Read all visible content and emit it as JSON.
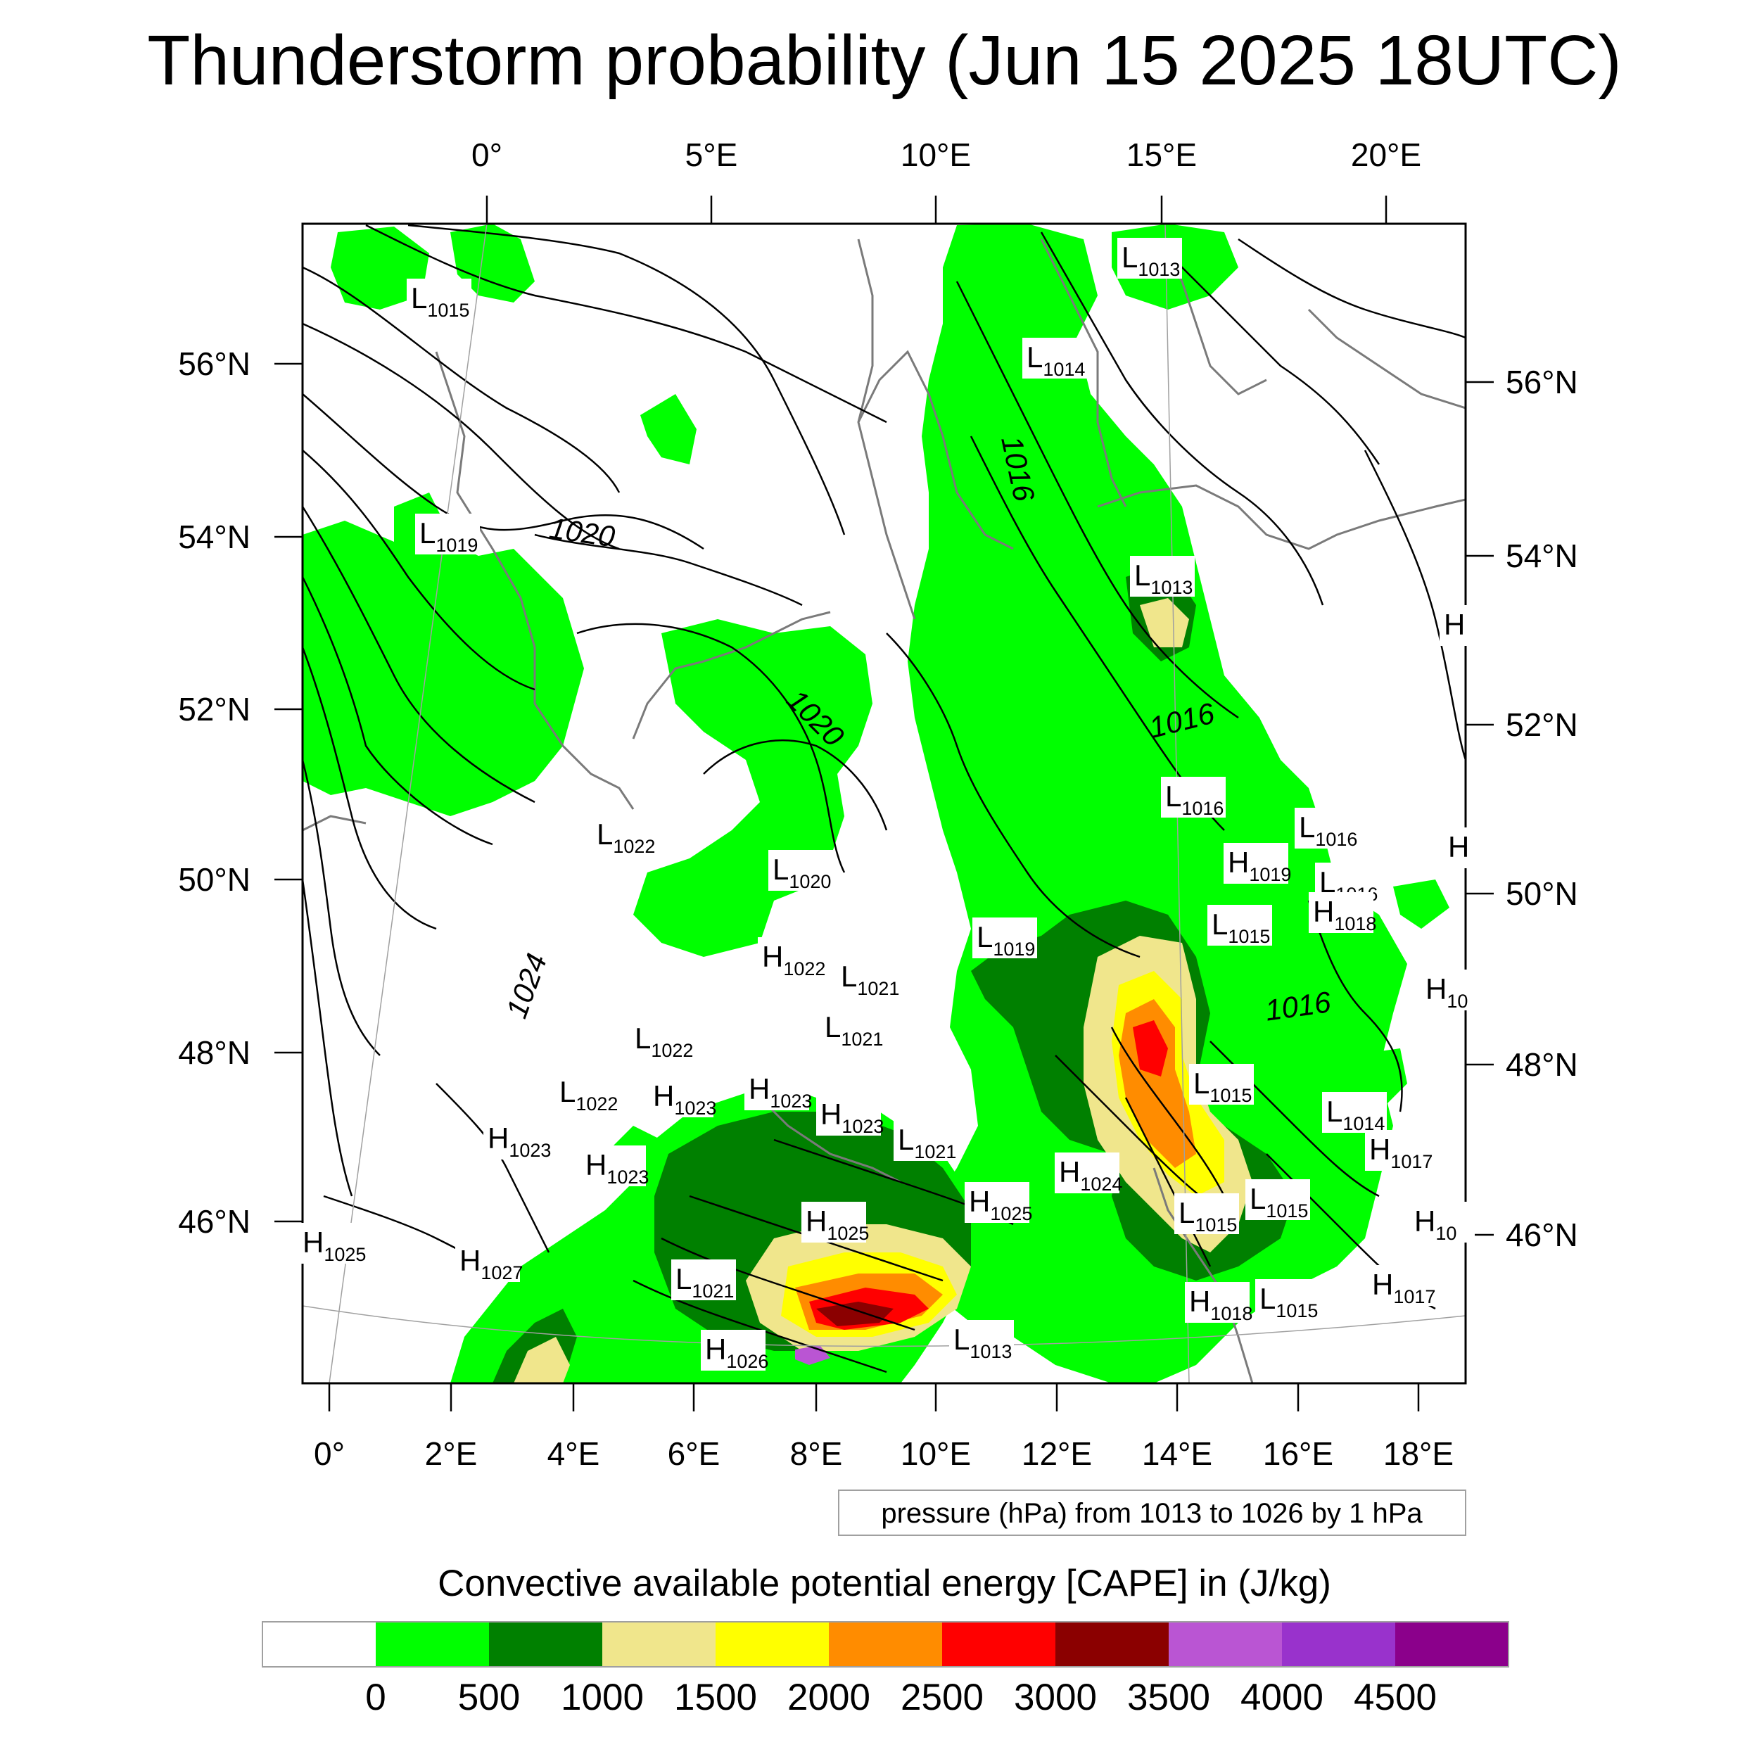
{
  "title": "Thunderstorm probability (Jun 15 2025 18UTC)",
  "top_lon_labels": [
    "0°",
    "5°E",
    "10°E",
    "15°E",
    "20°E"
  ],
  "bottom_lon_labels": [
    "0°",
    "2°E",
    "4°E",
    "6°E",
    "8°E",
    "10°E",
    "12°E",
    "14°E",
    "16°E",
    "18°E"
  ],
  "left_lat_labels": [
    "56°N",
    "54°N",
    "52°N",
    "50°N",
    "48°N",
    "46°N"
  ],
  "right_lat_labels": [
    "56°N",
    "54°N",
    "52°N",
    "50°N",
    "48°N",
    "46°N"
  ],
  "isobar_labels": [
    "1020",
    "1020",
    "1016",
    "1016",
    "1016",
    "1024"
  ],
  "pressure_centers": [
    {
      "t": "L",
      "v": "1015"
    },
    {
      "t": "L",
      "v": "1013"
    },
    {
      "t": "L",
      "v": "1014"
    },
    {
      "t": "L",
      "v": "1019"
    },
    {
      "t": "L",
      "v": "1013"
    },
    {
      "t": "H",
      "v": ""
    },
    {
      "t": "L",
      "v": "1016"
    },
    {
      "t": "L",
      "v": "1016"
    },
    {
      "t": "L",
      "v": "1022"
    },
    {
      "t": "L",
      "v": "1020"
    },
    {
      "t": "H",
      "v": "1019"
    },
    {
      "t": "L",
      "v": "1016"
    },
    {
      "t": "H",
      "v": "1018"
    },
    {
      "t": "H",
      "v": ""
    },
    {
      "t": "L",
      "v": "1019"
    },
    {
      "t": "L",
      "v": "1015"
    },
    {
      "t": "H",
      "v": "1022"
    },
    {
      "t": "L",
      "v": "1021"
    },
    {
      "t": "H",
      "v": "10"
    },
    {
      "t": "L",
      "v": "1021"
    },
    {
      "t": "L",
      "v": "1022"
    },
    {
      "t": "L",
      "v": "1015"
    },
    {
      "t": "L",
      "v": "1022"
    },
    {
      "t": "H",
      "v": "1023"
    },
    {
      "t": "H",
      "v": "1023"
    },
    {
      "t": "H",
      "v": "1023"
    },
    {
      "t": "L",
      "v": "1014"
    },
    {
      "t": "H",
      "v": "1023"
    },
    {
      "t": "H",
      "v": "1023"
    },
    {
      "t": "L",
      "v": "1021"
    },
    {
      "t": "H",
      "v": "1017"
    },
    {
      "t": "H",
      "v": "1024"
    },
    {
      "t": "L",
      "v": "1015"
    },
    {
      "t": "H",
      "v": "1025"
    },
    {
      "t": "L",
      "v": "1015"
    },
    {
      "t": "H",
      "v": "10"
    },
    {
      "t": "H",
      "v": "1025"
    },
    {
      "t": "H",
      "v": "1027"
    },
    {
      "t": "H",
      "v": "1025"
    },
    {
      "t": "L",
      "v": "1021"
    },
    {
      "t": "H",
      "v": "1017"
    },
    {
      "t": "H",
      "v": "1018"
    },
    {
      "t": "L",
      "v": "1015"
    },
    {
      "t": "L",
      "v": "1013"
    },
    {
      "t": "H",
      "v": "1026"
    }
  ],
  "pressure_note": "pressure (hPa) from 1013 to 1026 by 1 hPa",
  "colorbar": {
    "label": "Convective available potential energy [CAPE] in (J/kg)",
    "colors": [
      "#ffffff",
      "#00ff00",
      "#008000",
      "#f0e68c",
      "#ffff00",
      "#ff8c00",
      "#ff0000",
      "#8b0000",
      "#ba55d3",
      "#9932cc",
      "#8b008b"
    ],
    "ticks": [
      "0",
      "500",
      "1000",
      "1500",
      "2000",
      "2500",
      "3000",
      "3500",
      "4000",
      "4500"
    ]
  }
}
